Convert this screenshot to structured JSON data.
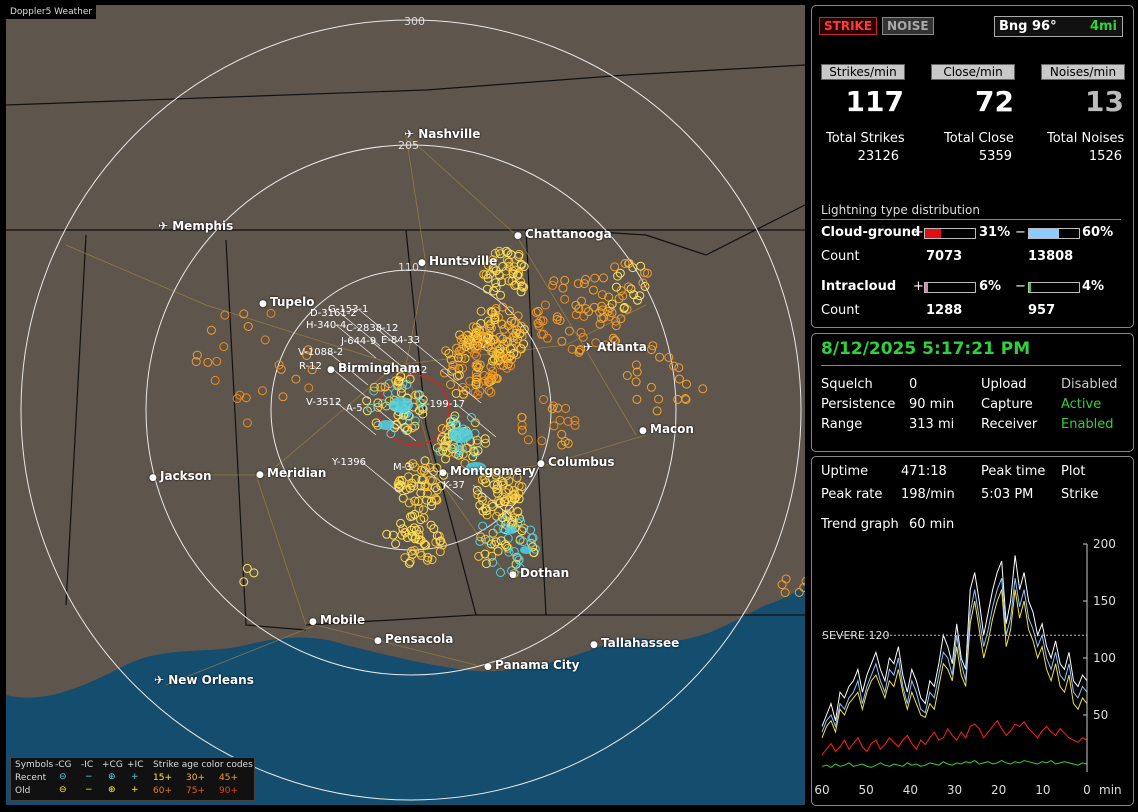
{
  "brand": "Doppler5 Weather",
  "range_labels": [
    "300",
    "205",
    "110"
  ],
  "cities": [
    {
      "name": "Nashville",
      "airport": true
    },
    {
      "name": "Memphis",
      "airport": true
    },
    {
      "name": "Chattanooga",
      "airport": false
    },
    {
      "name": "Huntsville",
      "airport": false
    },
    {
      "name": "Tupelo",
      "airport": false
    },
    {
      "name": "Birmingham",
      "airport": false
    },
    {
      "name": "Atlanta",
      "airport": true
    },
    {
      "name": "Macon",
      "airport": false
    },
    {
      "name": "Jackson",
      "airport": false
    },
    {
      "name": "Meridian",
      "airport": false
    },
    {
      "name": "Columbus",
      "airport": false
    },
    {
      "name": "Montgomery",
      "airport": false
    },
    {
      "name": "Dothan",
      "airport": false
    },
    {
      "name": "Mobile",
      "airport": false
    },
    {
      "name": "Pensacola",
      "airport": false
    },
    {
      "name": "Tallahassee",
      "airport": false
    },
    {
      "name": "Panama City",
      "airport": false
    },
    {
      "name": "New Orleans",
      "airport": true
    }
  ],
  "storm_tags": [
    "D-3161-2",
    "G-153-1",
    "H-340-4",
    "C-2838-12",
    "J-644-9",
    "E-84-33",
    "V-1088-2",
    "R-12",
    "V-3512",
    "A-5",
    "Y-1396",
    "M-3",
    "K-37",
    "S-2",
    "-199-17"
  ],
  "legend": {
    "row_headers": [
      "Symbols",
      "-CG",
      "-IC",
      "+CG",
      "+IC",
      "Strike age color codes"
    ],
    "recent_label": "Recent",
    "old_label": "Old",
    "recent_symbols": [
      "⊖",
      "−",
      "⊕",
      "+"
    ],
    "old_symbols": [
      "⊖",
      "−",
      "⊕",
      "+"
    ],
    "recent_ages": [
      "15+",
      "30+",
      "45+"
    ],
    "old_ages": [
      "60+",
      "75+",
      "90+"
    ]
  },
  "header": {
    "strike": "STRIKE",
    "noise": "NOISE",
    "bearing": "Bng 96°",
    "distance": "4mi"
  },
  "rates": [
    {
      "label": "Strikes/min",
      "value": "117",
      "total_label": "Total Strikes",
      "total": "23126"
    },
    {
      "label": "Close/min",
      "value": "72",
      "total_label": "Total Close",
      "total": "5359"
    },
    {
      "label": "Noises/min",
      "value": "13",
      "total_label": "Total Noises",
      "total": "1526"
    }
  ],
  "distribution": {
    "title": "Lightning type distribution",
    "cg_label": "Cloud-ground",
    "ic_label": "Intracloud",
    "count_label": "Count",
    "cg_pos": {
      "sign": "+",
      "pct": "31%",
      "value": 31,
      "count": "7073"
    },
    "cg_neg": {
      "sign": "−",
      "pct": "60%",
      "value": 60,
      "count": "13808"
    },
    "ic_pos": {
      "sign": "+",
      "pct": "6%",
      "value": 6,
      "count": "1288"
    },
    "ic_neg": {
      "sign": "−",
      "pct": "4%",
      "value": 4,
      "count": "957"
    }
  },
  "status": {
    "datetime": "8/12/2025 5:17:21 PM",
    "squelch_label": "Squelch",
    "squelch": "0",
    "persistence_label": "Persistence",
    "persistence": "90 min",
    "range_label": "Range",
    "range": "313 mi",
    "upload_label": "Upload",
    "upload": "Disabled",
    "capture_label": "Capture",
    "capture": "Active",
    "receiver_label": "Receiver",
    "receiver": "Enabled"
  },
  "stats": {
    "uptime_label": "Uptime",
    "uptime": "471:18",
    "peak_time_label": "Peak time",
    "peak_time": "5:03 PM",
    "plot_label": "Plot",
    "plot": "Strike",
    "peak_rate_label": "Peak rate",
    "peak_rate": "198/min",
    "trend_label": "Trend graph",
    "trend": "60 min"
  },
  "chart_data": {
    "type": "line",
    "x_ticks": [
      "60",
      "50",
      "40",
      "30",
      "20",
      "10",
      "0"
    ],
    "xunit": "min",
    "y_ticks": [
      "200",
      "150",
      "100",
      "50"
    ],
    "ylim": [
      0,
      200
    ],
    "xlim": [
      60,
      0
    ],
    "threshold": {
      "label": "SEVERE 120",
      "value": 120
    },
    "series": [
      {
        "color": "#ffffff",
        "values": [
          40,
          50,
          60,
          45,
          70,
          65,
          75,
          80,
          90,
          70,
          85,
          95,
          105,
          90,
          80,
          100,
          95,
          110,
          85,
          70,
          90,
          80,
          65,
          60,
          80,
          75,
          95,
          120,
          110,
          95,
          130,
          100,
          90,
          160,
          175,
          150,
          120,
          140,
          160,
          175,
          185,
          130,
          150,
          190,
          160,
          175,
          150,
          140,
          120,
          130,
          110,
          100,
          115,
          95,
          90,
          105,
          80,
          75,
          85,
          80
        ]
      },
      {
        "color": "#f2e04a",
        "values": [
          30,
          40,
          45,
          35,
          55,
          50,
          60,
          65,
          70,
          55,
          70,
          80,
          85,
          75,
          65,
          80,
          75,
          90,
          70,
          55,
          70,
          60,
          50,
          48,
          60,
          55,
          75,
          95,
          90,
          80,
          110,
          85,
          75,
          130,
          150,
          125,
          100,
          115,
          135,
          150,
          160,
          110,
          125,
          160,
          135,
          150,
          125,
          115,
          100,
          110,
          90,
          80,
          95,
          75,
          70,
          85,
          60,
          55,
          65,
          60
        ]
      },
      {
        "color": "#8fc3ff",
        "values": [
          35,
          45,
          50,
          40,
          60,
          55,
          65,
          70,
          80,
          60,
          75,
          85,
          95,
          80,
          70,
          90,
          85,
          100,
          75,
          60,
          80,
          70,
          55,
          52,
          70,
          65,
          85,
          105,
          100,
          85,
          120,
          95,
          80,
          140,
          160,
          135,
          110,
          125,
          145,
          160,
          170,
          120,
          135,
          170,
          145,
          160,
          135,
          125,
          110,
          120,
          100,
          90,
          105,
          85,
          80,
          95,
          70,
          65,
          75,
          70
        ]
      },
      {
        "color": "#ff2020",
        "values": [
          15,
          20,
          25,
          18,
          22,
          28,
          20,
          25,
          30,
          22,
          18,
          25,
          28,
          20,
          24,
          30,
          26,
          22,
          28,
          32,
          25,
          20,
          28,
          24,
          30,
          35,
          28,
          30,
          38,
          32,
          28,
          35,
          30,
          40,
          42,
          38,
          30,
          35,
          40,
          45,
          38,
          32,
          36,
          42,
          40,
          44,
          38,
          34,
          30,
          36,
          40,
          35,
          32,
          38,
          34,
          30,
          28,
          26,
          30,
          28
        ]
      },
      {
        "color": "#2fd13a",
        "values": [
          5,
          6,
          4,
          7,
          5,
          6,
          8,
          5,
          6,
          7,
          5,
          4,
          6,
          8,
          6,
          5,
          7,
          6,
          5,
          8,
          6,
          7,
          5,
          6,
          8,
          7,
          6,
          9,
          7,
          6,
          8,
          7,
          9,
          8,
          10,
          7,
          8,
          9,
          7,
          8,
          10,
          8,
          7,
          9,
          8,
          10,
          9,
          8,
          7,
          9,
          8,
          10,
          7,
          8,
          9,
          8,
          7,
          6,
          8,
          7
        ]
      }
    ]
  }
}
